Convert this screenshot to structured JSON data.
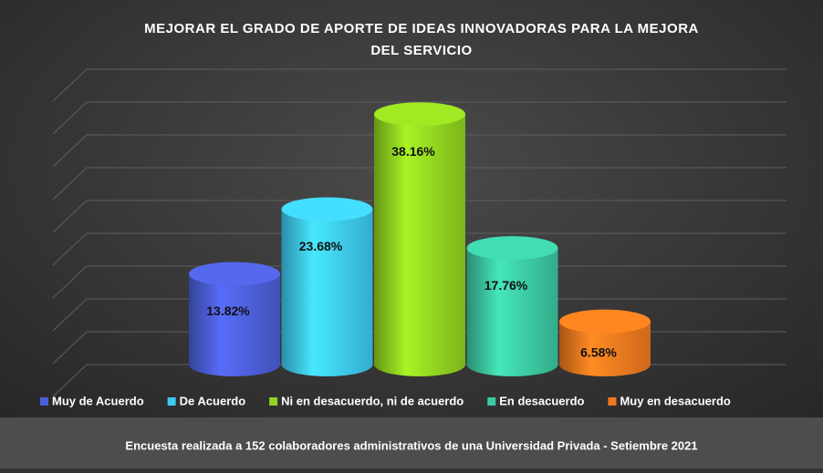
{
  "chart_data": {
    "type": "cylinder",
    "title": "MEJORAR EL GRADO DE APORTE DE IDEAS INNOVADORAS PARA LA MEJORA DEL SERVICIO",
    "categories": [
      "Muy de Acuerdo",
      "De Acuerdo",
      "Ni en desacuerdo, ni de acuerdo",
      "En desacuerdo",
      "Muy en desacuerdo"
    ],
    "values": [
      13.82,
      23.68,
      38.16,
      17.76,
      6.58
    ],
    "value_labels": [
      "13.82%",
      "23.68%",
      "38.16%",
      "17.76%",
      "6.58%"
    ],
    "colors": [
      "#4c5fd8",
      "#3ecaf2",
      "#92d420",
      "#3cc9a2",
      "#f27a1e"
    ],
    "ylim": [
      0,
      45
    ],
    "yticks": [
      0,
      5,
      10,
      15,
      20,
      25,
      30,
      35,
      40,
      45
    ],
    "tick_labels": false,
    "grid": true,
    "legend": "bottom",
    "footer": "Encuesta realizada a 152 colaboradores administrativos de una Universidad Privada - Setiembre 2021"
  }
}
